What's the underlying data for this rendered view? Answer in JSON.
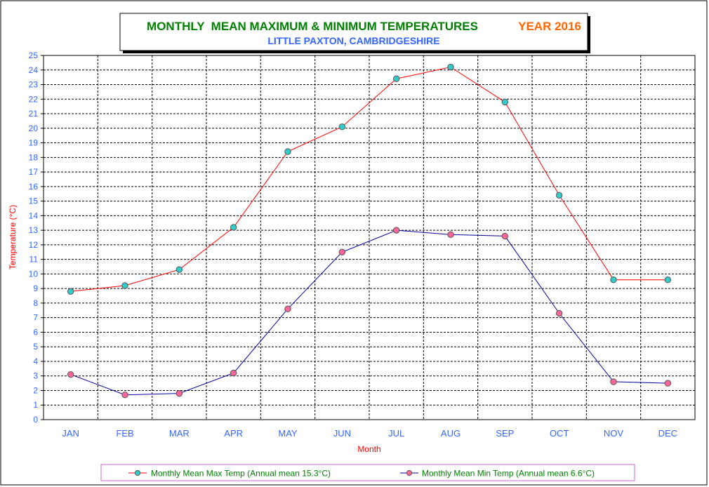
{
  "colors": {
    "frame": "#000000",
    "title_green": "#008000",
    "title_orange": "#ff6600",
    "subtitle_blue": "#3366ff",
    "tick_blue": "#3366ff",
    "axis_label_red": "#ff0000",
    "max_line": "#ff0000",
    "max_marker": "#33cccc",
    "min_line": "#000099",
    "min_marker": "#ff6699",
    "legend_border": "#cc66cc",
    "legend_text": "#008000"
  },
  "chart_data": {
    "type": "line",
    "title_main": "MONTHLY  MEAN MAXIMUM & MINIMUM TEMPERATURES",
    "title_year": "YEAR 2016",
    "subtitle": "LITTLE PAXTON, CAMBRIDGESHIRE",
    "xlabel": "Month",
    "ylabel": "Temperature (°C)",
    "ylim": [
      0,
      25
    ],
    "y_ticks": [
      "0",
      "1",
      "2",
      "3",
      "4",
      "5",
      "6",
      "7",
      "8",
      "9",
      "10",
      "11",
      "12",
      "13",
      "14",
      "15",
      "16",
      "17",
      "18",
      "19",
      "20",
      "21",
      "22",
      "23",
      "24",
      "25"
    ],
    "grid": true,
    "legend_position": "bottom",
    "categories": [
      "JAN",
      "FEB",
      "MAR",
      "APR",
      "MAY",
      "JUN",
      "JUL",
      "AUG",
      "SEP",
      "OCT",
      "NOV",
      "DEC"
    ],
    "series": [
      {
        "name": "Monthly Mean Max Temp (Annual mean 15.3°C)",
        "values": [
          8.8,
          9.2,
          10.3,
          13.2,
          18.4,
          20.1,
          23.4,
          24.2,
          21.8,
          15.4,
          9.6,
          9.6
        ]
      },
      {
        "name": "Monthly Mean Min Temp (Annual mean 6.6°C)",
        "values": [
          3.1,
          1.7,
          1.8,
          3.2,
          7.6,
          11.5,
          13.0,
          12.7,
          12.6,
          7.3,
          2.6,
          2.5
        ]
      }
    ]
  }
}
